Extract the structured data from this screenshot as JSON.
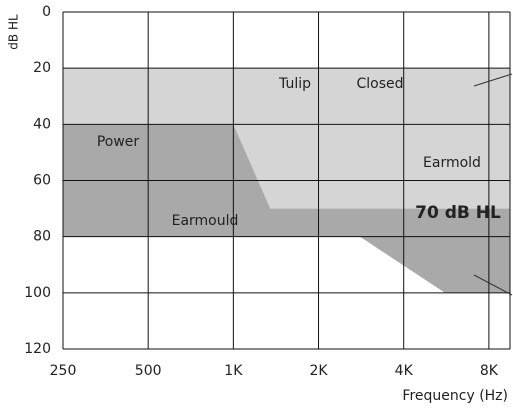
{
  "chart_data": {
    "type": "region",
    "y_label": "dB HL",
    "x_label": "Frequency (Hz)",
    "x_scale": "log",
    "y_inverted": true,
    "grid": true,
    "xlim": [
      250,
      9500
    ],
    "ylim": [
      0,
      120
    ],
    "xticks": [
      250,
      500,
      {
        "value": 1000,
        "label": "1K"
      },
      {
        "value": 2000,
        "label": "2K"
      },
      {
        "value": 4000,
        "label": "4K"
      },
      {
        "value": 8000,
        "label": "8K"
      }
    ],
    "yticks": [
      0,
      20,
      40,
      60,
      80,
      100,
      120
    ],
    "series": [
      {
        "color": "#d5d5d5",
        "x": [
          250,
          9500,
          9500,
          1350,
          1000,
          250
        ],
        "values": [
          20,
          20,
          70,
          70,
          40,
          40
        ]
      },
      {
        "color": "#a9a9a9",
        "x": [
          250,
          1000,
          1350,
          9500,
          9500,
          5600,
          2800,
          250
        ],
        "values": [
          40,
          40,
          70,
          70,
          100,
          100,
          80,
          80
        ]
      }
    ],
    "annotations": [
      "Power",
      "Earmould",
      "Tulip",
      "Closed",
      "Earmold",
      "70 dB HL"
    ]
  }
}
